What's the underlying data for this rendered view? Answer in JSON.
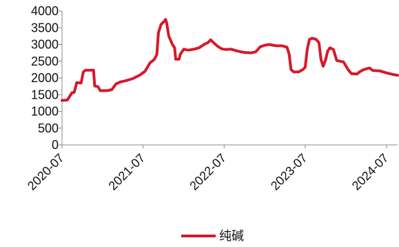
{
  "chart_data": {
    "type": "line",
    "title": "",
    "xlabel": "",
    "ylabel": "",
    "ylim": [
      0,
      4000
    ],
    "yticks": [
      0,
      500,
      1000,
      1500,
      2000,
      2500,
      3000,
      3500,
      4000
    ],
    "xlim": [
      "2020-07-01",
      "2024-08-20"
    ],
    "xticks": [
      "2020-07",
      "2021-07",
      "2022-07",
      "2023-07",
      "2024-07"
    ],
    "grid": false,
    "legend": "bottom-center",
    "series": [
      {
        "name": "纯碱",
        "color": "#d7182a",
        "points": [
          [
            "2020-07-01",
            1330
          ],
          [
            "2020-07-25",
            1340
          ],
          [
            "2020-08-15",
            1560
          ],
          [
            "2020-08-25",
            1570
          ],
          [
            "2020-09-05",
            1860
          ],
          [
            "2020-09-25",
            1850
          ],
          [
            "2020-10-05",
            2180
          ],
          [
            "2020-10-15",
            2230
          ],
          [
            "2020-11-20",
            2230
          ],
          [
            "2020-11-25",
            1760
          ],
          [
            "2020-12-10",
            1740
          ],
          [
            "2020-12-20",
            1620
          ],
          [
            "2021-01-20",
            1620
          ],
          [
            "2021-02-10",
            1650
          ],
          [
            "2021-03-01",
            1820
          ],
          [
            "2021-03-20",
            1880
          ],
          [
            "2021-04-15",
            1920
          ],
          [
            "2021-05-15",
            1980
          ],
          [
            "2021-06-15",
            2080
          ],
          [
            "2021-07-10",
            2200
          ],
          [
            "2021-08-01",
            2450
          ],
          [
            "2021-08-20",
            2550
          ],
          [
            "2021-09-01",
            2700
          ],
          [
            "2021-09-08",
            3350
          ],
          [
            "2021-09-20",
            3600
          ],
          [
            "2021-10-05",
            3700
          ],
          [
            "2021-10-10",
            3750
          ],
          [
            "2021-10-15",
            3650
          ],
          [
            "2021-10-25",
            3250
          ],
          [
            "2021-11-10",
            3000
          ],
          [
            "2021-11-20",
            2900
          ],
          [
            "2021-11-25",
            2560
          ],
          [
            "2021-12-10",
            2560
          ],
          [
            "2021-12-15",
            2700
          ],
          [
            "2021-12-31",
            2860
          ],
          [
            "2022-01-20",
            2830
          ],
          [
            "2022-02-15",
            2860
          ],
          [
            "2022-03-10",
            2900
          ],
          [
            "2022-04-01",
            3000
          ],
          [
            "2022-04-20",
            3060
          ],
          [
            "2022-05-01",
            3140
          ],
          [
            "2022-05-15",
            3050
          ],
          [
            "2022-06-01",
            2950
          ],
          [
            "2022-06-20",
            2870
          ],
          [
            "2022-07-10",
            2850
          ],
          [
            "2022-08-01",
            2860
          ],
          [
            "2022-09-01",
            2800
          ],
          [
            "2022-10-01",
            2760
          ],
          [
            "2022-11-01",
            2750
          ],
          [
            "2022-11-20",
            2780
          ],
          [
            "2022-12-10",
            2930
          ],
          [
            "2023-01-01",
            2980
          ],
          [
            "2023-01-20",
            3000
          ],
          [
            "2023-02-20",
            2960
          ],
          [
            "2023-03-20",
            2960
          ],
          [
            "2023-04-10",
            2920
          ],
          [
            "2023-04-20",
            2700
          ],
          [
            "2023-04-28",
            2250
          ],
          [
            "2023-05-10",
            2180
          ],
          [
            "2023-06-01",
            2180
          ],
          [
            "2023-06-20",
            2250
          ],
          [
            "2023-07-01",
            2320
          ],
          [
            "2023-07-10",
            2850
          ],
          [
            "2023-07-20",
            3150
          ],
          [
            "2023-08-01",
            3190
          ],
          [
            "2023-08-20",
            3150
          ],
          [
            "2023-09-01",
            3050
          ],
          [
            "2023-09-10",
            2550
          ],
          [
            "2023-09-20",
            2350
          ],
          [
            "2023-10-01",
            2550
          ],
          [
            "2023-10-10",
            2800
          ],
          [
            "2023-10-20",
            2900
          ],
          [
            "2023-11-05",
            2850
          ],
          [
            "2023-11-20",
            2520
          ],
          [
            "2023-12-05",
            2500
          ],
          [
            "2023-12-20",
            2480
          ],
          [
            "2024-01-10",
            2250
          ],
          [
            "2024-01-25",
            2130
          ],
          [
            "2024-02-20",
            2120
          ],
          [
            "2024-03-01",
            2180
          ],
          [
            "2024-03-20",
            2250
          ],
          [
            "2024-04-15",
            2300
          ],
          [
            "2024-05-01",
            2220
          ],
          [
            "2024-06-01",
            2210
          ],
          [
            "2024-07-01",
            2150
          ],
          [
            "2024-08-01",
            2100
          ],
          [
            "2024-08-20",
            2080
          ]
        ]
      }
    ]
  }
}
